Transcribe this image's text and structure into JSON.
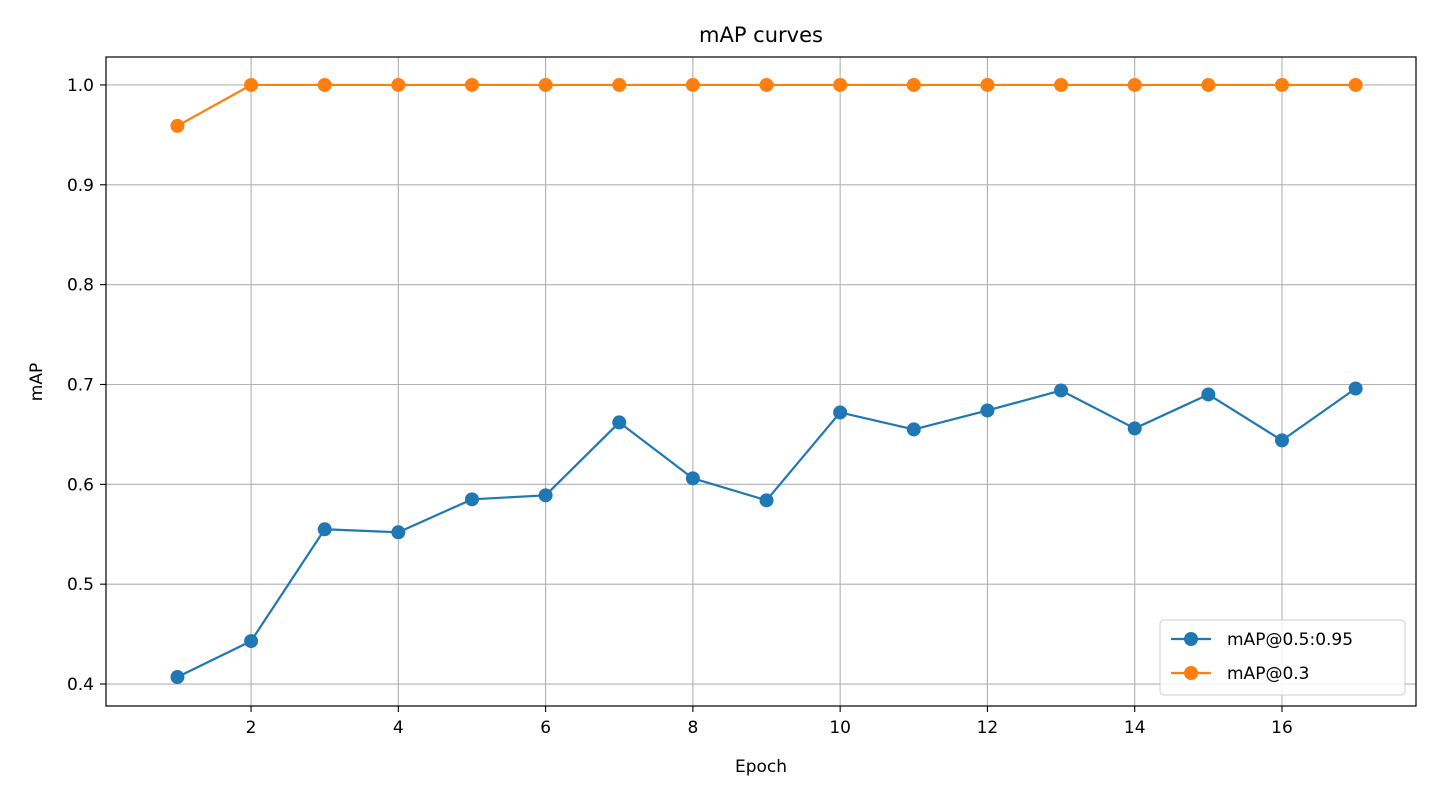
{
  "chart_data": {
    "type": "line",
    "title": "mAP curves",
    "xlabel": "Epoch",
    "ylabel": "mAP",
    "x": [
      1,
      2,
      3,
      4,
      5,
      6,
      7,
      8,
      9,
      10,
      11,
      12,
      13,
      14,
      15,
      16,
      17
    ],
    "xlim": [
      0.03,
      17.82
    ],
    "ylim": [
      0.378,
      1.028
    ],
    "xticks": [
      "2",
      "4",
      "6",
      "8",
      "10",
      "12",
      "14",
      "16"
    ],
    "yticks": [
      "0.4",
      "0.5",
      "0.6",
      "0.7",
      "0.8",
      "0.9",
      "1.0"
    ],
    "grid": true,
    "legend_position": "lower-right",
    "series": [
      {
        "name": "mAP@0.5:0.95",
        "color": "#1f77b4",
        "values": [
          0.407,
          0.443,
          0.555,
          0.552,
          0.585,
          0.589,
          0.662,
          0.606,
          0.584,
          0.672,
          0.655,
          0.674,
          0.694,
          0.656,
          0.69,
          0.644,
          0.696
        ]
      },
      {
        "name": "mAP@0.3",
        "color": "#ff7f0e",
        "values": [
          0.959,
          1.0,
          1.0,
          1.0,
          1.0,
          1.0,
          1.0,
          1.0,
          1.0,
          1.0,
          1.0,
          1.0,
          1.0,
          1.0,
          1.0,
          1.0,
          1.0
        ]
      }
    ]
  }
}
